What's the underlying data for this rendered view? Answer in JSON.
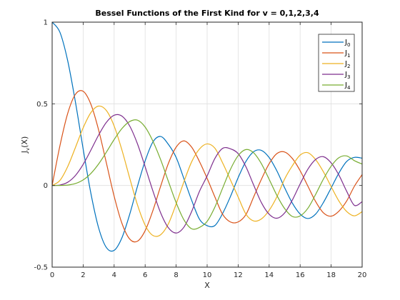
{
  "chart_data": {
    "type": "line",
    "title": "Bessel Functions of the First Kind for v = 0,1,2,3,4",
    "xlabel": "X",
    "ylabel": {
      "base": "J",
      "sub": "v",
      "suffix": "(X)"
    },
    "xlim": [
      0,
      20
    ],
    "ylim": [
      -0.5,
      1
    ],
    "xticks": [
      0,
      2,
      4,
      6,
      8,
      10,
      12,
      14,
      16,
      18,
      20
    ],
    "yticks": [
      -0.5,
      0,
      0.5,
      1
    ],
    "ytick_labels": [
      "-0.5",
      "0",
      "0.5",
      "1"
    ],
    "grid": true,
    "legend_position": "top-right",
    "x_step": 0.5,
    "series": [
      {
        "name": "J",
        "sub": "0",
        "color": "#0072BD",
        "values": [
          1.0,
          0.9385,
          0.7652,
          0.5118,
          0.2239,
          -0.0484,
          -0.2601,
          -0.3801,
          -0.3971,
          -0.3205,
          -0.1776,
          -0.0068,
          0.1506,
          0.2663,
          0.3001,
          0.2516,
          0.1717,
          0.0419,
          -0.0903,
          -0.2055,
          -0.2459,
          -0.2453,
          -0.1712,
          -0.0684,
          0.0477,
          0.1469,
          0.2069,
          0.215,
          0.1711,
          0.0893,
          -0.0142,
          -0.1083,
          -0.1749,
          -0.2023,
          -0.175,
          -0.1045,
          -0.015,
          0.0761,
          0.1469,
          0.1721,
          0.167
        ]
      },
      {
        "name": "J",
        "sub": "1",
        "color": "#D95319",
        "values": [
          0.0,
          0.2423,
          0.4401,
          0.5579,
          0.5767,
          0.4971,
          0.3391,
          0.1374,
          -0.066,
          -0.2311,
          -0.3276,
          -0.3414,
          -0.2767,
          -0.1538,
          -0.0047,
          0.1352,
          0.2346,
          0.2731,
          0.2346,
          0.1474,
          0.0435,
          -0.0703,
          -0.1768,
          -0.2234,
          -0.2234,
          -0.1784,
          -0.0703,
          0.038,
          0.1334,
          0.1953,
          0.2051,
          0.165,
          0.0904,
          -0.0043,
          -0.0984,
          -0.1672,
          -0.188,
          -0.1573,
          -0.0953,
          -0.0047,
          0.0668
        ]
      },
      {
        "name": "J",
        "sub": "2",
        "color": "#EDB120",
        "values": [
          0.0,
          0.0306,
          0.1149,
          0.2321,
          0.3528,
          0.4461,
          0.4861,
          0.4586,
          0.3641,
          0.2178,
          0.0465,
          -0.1173,
          -0.2429,
          -0.3061,
          -0.3014,
          -0.2345,
          -0.113,
          0.0225,
          0.1448,
          0.2228,
          0.2546,
          0.2279,
          0.138,
          0.0345,
          -0.0703,
          -0.175,
          -0.217,
          -0.2048,
          -0.152,
          -0.0693,
          0.0397,
          0.1212,
          0.186,
          0.2006,
          0.1583,
          0.084,
          -0.007,
          -0.095,
          -0.159,
          -0.186,
          -0.1603
        ]
      },
      {
        "name": "J",
        "sub": "3",
        "color": "#7E2F8E",
        "values": [
          0.0,
          0.0026,
          0.0196,
          0.061,
          0.1289,
          0.2166,
          0.3091,
          0.3868,
          0.4302,
          0.4247,
          0.3648,
          0.2561,
          0.1148,
          -0.0335,
          -0.1676,
          -0.2591,
          -0.2911,
          -0.2553,
          -0.1596,
          -0.0369,
          0.0584,
          0.1654,
          0.2273,
          0.2248,
          0.1951,
          0.1149,
          0.0027,
          -0.105,
          -0.176,
          -0.2004,
          -0.1683,
          -0.0886,
          0.0095,
          0.1,
          0.1593,
          0.1763,
          0.1386,
          0.0638,
          -0.035,
          -0.1215,
          -0.0989
        ]
      },
      {
        "name": "J",
        "sub": "4",
        "color": "#77AC30",
        "values": [
          0.0,
          0.0002,
          0.0025,
          0.0118,
          0.034,
          0.0738,
          0.132,
          0.2044,
          0.2811,
          0.3484,
          0.3912,
          0.3999,
          0.3576,
          0.2714,
          0.1578,
          0.025,
          -0.1054,
          -0.21,
          -0.265,
          -0.257,
          -0.2196,
          -0.132,
          -0.016,
          0.0982,
          0.1825,
          0.22,
          0.2,
          0.1335,
          0.038,
          -0.0608,
          -0.1415,
          -0.19,
          -0.1861,
          -0.1395,
          -0.0545,
          0.039,
          0.118,
          0.17,
          0.181,
          0.152,
          0.131
        ]
      }
    ]
  }
}
